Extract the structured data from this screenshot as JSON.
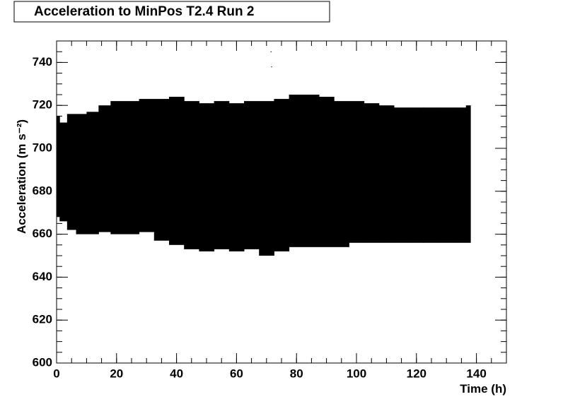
{
  "chart_data": {
    "type": "range",
    "title": "Acceleration to MinPos T2.4 Run 2",
    "x_label": "Time (h)",
    "y_label": "Acceleration (m s⁻²)",
    "color": "#000000",
    "x": [
      0,
      2,
      5,
      8,
      12,
      16,
      20,
      25,
      30,
      35,
      40,
      45,
      50,
      55,
      60,
      65,
      70,
      75,
      80,
      85,
      90,
      95,
      100,
      105,
      110,
      115,
      120,
      125,
      130,
      135,
      138
    ],
    "low": [
      668,
      666,
      662,
      660,
      660,
      661,
      660,
      660,
      661,
      657,
      655,
      653,
      652,
      653,
      652,
      653,
      650,
      652,
      654,
      654,
      654,
      654,
      656,
      656,
      656,
      656,
      656,
      656,
      656,
      656,
      656
    ],
    "high": [
      715,
      712,
      716,
      716,
      717,
      720,
      722,
      722,
      723,
      723,
      724,
      722,
      721,
      722,
      721,
      722,
      722,
      723,
      725,
      725,
      724,
      722,
      722,
      721,
      720,
      719,
      719,
      719,
      719,
      719,
      720
    ],
    "outliers": {
      "x": [
        71.5,
        71.7
      ],
      "y": [
        745,
        738
      ]
    },
    "xlim": [
      0,
      150
    ],
    "ylim": [
      600,
      750
    ],
    "xticks": [
      0,
      20,
      40,
      60,
      80,
      100,
      120,
      140
    ],
    "yticks": [
      600,
      620,
      640,
      660,
      680,
      700,
      720,
      740
    ]
  }
}
